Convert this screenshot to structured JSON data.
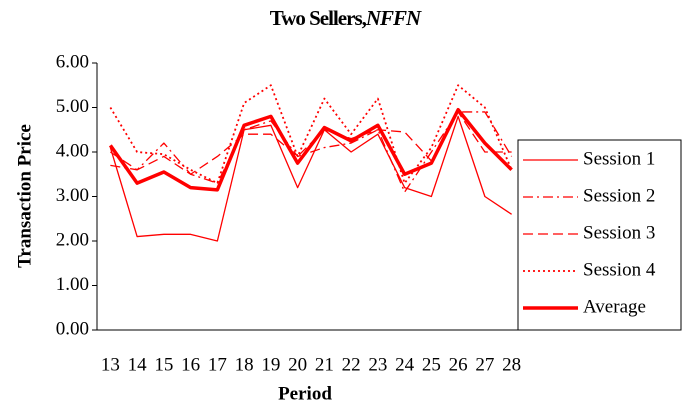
{
  "chart_data": {
    "type": "line",
    "title": [
      "Two Sellers,",
      "NFFN"
    ],
    "x_label": "Period",
    "y_label": "Transaction Price",
    "categories": [
      "13",
      "14",
      "15",
      "16",
      "17",
      "18",
      "19",
      "20",
      "21",
      "22",
      "23",
      "24",
      "25",
      "26",
      "27",
      "28"
    ],
    "ylim": [
      0,
      6
    ],
    "yticks": [
      {
        "value": 0,
        "label": "0.00"
      },
      {
        "value": 1,
        "label": "1.00"
      },
      {
        "value": 2,
        "label": "2.00"
      },
      {
        "value": 3,
        "label": "3.00"
      },
      {
        "value": 4,
        "label": "4.00"
      },
      {
        "value": 5,
        "label": "5.00"
      },
      {
        "value": 6,
        "label": "6.00"
      }
    ],
    "legend": "right",
    "series": [
      {
        "name": "Session 1",
        "color": "#ff0000",
        "dash": "none",
        "width": 1.3,
        "values": [
          4.1,
          2.1,
          2.15,
          2.15,
          2.0,
          4.5,
          4.6,
          3.2,
          4.5,
          4.0,
          4.4,
          3.2,
          3.0,
          4.8,
          3.0,
          2.6
        ]
      },
      {
        "name": "Session 2",
        "color": "#ff0000",
        "dash": "10 4 2 4",
        "width": 1.3,
        "values": [
          3.7,
          3.6,
          4.2,
          3.5,
          3.3,
          4.5,
          4.7,
          3.9,
          4.1,
          4.2,
          4.5,
          3.1,
          4.0,
          4.9,
          4.9,
          3.9
        ]
      },
      {
        "name": "Session 3",
        "color": "#ff0000",
        "dash": "10 5",
        "width": 1.3,
        "values": [
          4.0,
          3.6,
          3.9,
          3.5,
          3.9,
          4.4,
          4.4,
          3.9,
          4.5,
          4.3,
          4.5,
          4.45,
          3.8,
          4.9,
          4.0,
          4.0
        ]
      },
      {
        "name": "Session 4",
        "color": "#ff0000",
        "dash": "2 3",
        "width": 1.8,
        "values": [
          5.0,
          4.0,
          3.95,
          3.6,
          3.3,
          5.1,
          5.5,
          3.9,
          5.2,
          4.4,
          5.2,
          3.3,
          4.1,
          5.5,
          5.0,
          3.6
        ]
      },
      {
        "name": "Average",
        "color": "#ff0000",
        "dash": "none",
        "width": 3.5,
        "values": [
          4.15,
          3.3,
          3.55,
          3.2,
          3.15,
          4.6,
          4.8,
          3.75,
          4.55,
          4.25,
          4.6,
          3.5,
          3.75,
          4.95,
          4.2,
          3.6
        ]
      }
    ]
  }
}
